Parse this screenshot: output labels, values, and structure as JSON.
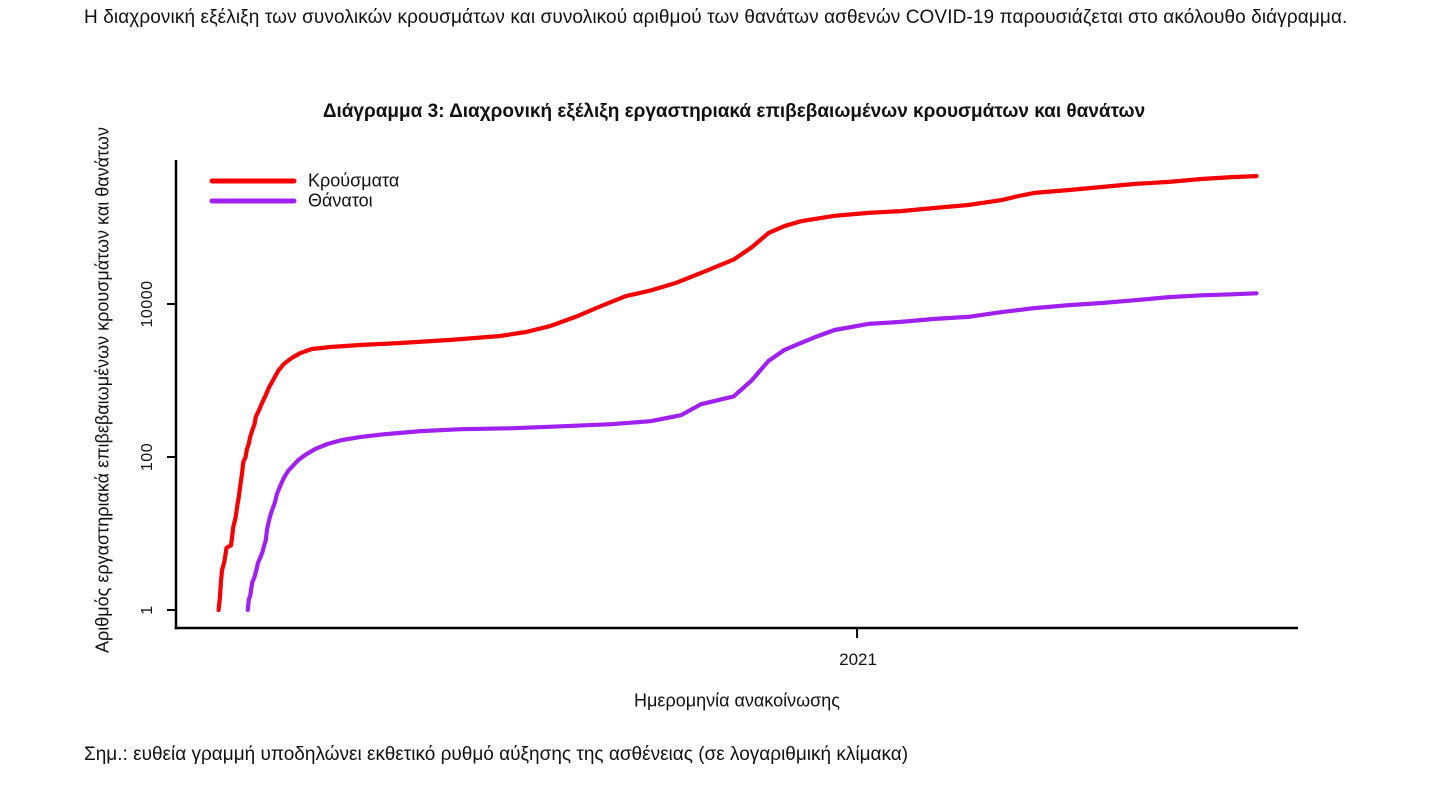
{
  "intro": {
    "text": "Η διαχρονική εξέλιξη των συνολικών κρουσμάτων και συνολικού αριθμού των θανάτων ασθενών COVID-19 παρουσιάζεται στο ακόλουθο διάγραμμα."
  },
  "note": {
    "text": "Σημ.: ευθεία γραμμή υποδηλώνει εκθετικό ρυθμό αύξησης της ασθένειας (σε λογαριθμική κλίμακα)"
  },
  "colors": {
    "cases": "#f40000",
    "deaths": "#a020f0",
    "axis": "#000000",
    "text": "#111111"
  },
  "chart_data": {
    "type": "line",
    "title": "Διάγραμμα 3: Διαχρονική εξέλιξη εργαστηριακά επιβεβαιωμένων κρουσμάτων και θανάτων",
    "xlabel": "Ημερομηνία ανακοίνωσης",
    "ylabel": "Αριθμός εργαστηριακά επιβεβαιωμένων κρουσμάτων και θανάτων",
    "y_scale": "log10",
    "ylim": [
      1,
      800000
    ],
    "grid": false,
    "legend_position": "top-left inside plot",
    "x_unit": "fraction of the date axis (0 = left end, 1 = right end)",
    "y_ticks": [
      {
        "value": 1,
        "label": "1"
      },
      {
        "value": 100,
        "label": "100"
      },
      {
        "value": 10000,
        "label": "10000"
      }
    ],
    "x_ticks": [
      {
        "frac": 0.607,
        "label": "2021"
      }
    ],
    "series": [
      {
        "name": "Κρούσματα",
        "color": "#f40000",
        "points": [
          [
            0.038,
            1
          ],
          [
            0.039,
            1.4
          ],
          [
            0.04,
            2.3
          ],
          [
            0.041,
            3.3
          ],
          [
            0.043,
            4.2
          ],
          [
            0.044,
            5.2
          ],
          [
            0.045,
            6.5
          ],
          [
            0.049,
            7
          ],
          [
            0.05,
            9
          ],
          [
            0.051,
            12
          ],
          [
            0.053,
            16
          ],
          [
            0.054,
            20
          ],
          [
            0.055,
            25
          ],
          [
            0.056,
            30
          ],
          [
            0.057,
            40
          ],
          [
            0.058,
            50
          ],
          [
            0.059,
            64
          ],
          [
            0.06,
            86
          ],
          [
            0.062,
            100
          ],
          [
            0.063,
            123
          ],
          [
            0.065,
            152
          ],
          [
            0.066,
            182
          ],
          [
            0.068,
            224
          ],
          [
            0.07,
            268
          ],
          [
            0.071,
            332
          ],
          [
            0.074,
            410
          ],
          [
            0.077,
            520
          ],
          [
            0.08,
            646
          ],
          [
            0.083,
            818
          ],
          [
            0.087,
            1040
          ],
          [
            0.091,
            1330
          ],
          [
            0.096,
            1640
          ],
          [
            0.103,
            1970
          ],
          [
            0.111,
            2290
          ],
          [
            0.121,
            2580
          ],
          [
            0.138,
            2740
          ],
          [
            0.164,
            2910
          ],
          [
            0.2,
            3090
          ],
          [
            0.245,
            3390
          ],
          [
            0.289,
            3820
          ],
          [
            0.312,
            4310
          ],
          [
            0.334,
            5180
          ],
          [
            0.356,
            6790
          ],
          [
            0.379,
            9420
          ],
          [
            0.401,
            12700
          ],
          [
            0.423,
            15000
          ],
          [
            0.446,
            19000
          ],
          [
            0.468,
            25500
          ],
          [
            0.497,
            38000
          ],
          [
            0.513,
            55000
          ],
          [
            0.528,
            84500
          ],
          [
            0.542,
            104000
          ],
          [
            0.557,
            121000
          ],
          [
            0.587,
            142000
          ],
          [
            0.617,
            155000
          ],
          [
            0.646,
            164000
          ],
          [
            0.676,
            180000
          ],
          [
            0.706,
            197000
          ],
          [
            0.736,
            228000
          ],
          [
            0.751,
            258000
          ],
          [
            0.765,
            283000
          ],
          [
            0.796,
            309000
          ],
          [
            0.825,
            338000
          ],
          [
            0.855,
            372000
          ],
          [
            0.885,
            395000
          ],
          [
            0.914,
            430000
          ],
          [
            0.941,
            456000
          ],
          [
            0.963,
            470000
          ]
        ]
      },
      {
        "name": "Θάνατοι",
        "color": "#a020f0",
        "points": [
          [
            0.064,
            1
          ],
          [
            0.065,
            1.4
          ],
          [
            0.066,
            1.5
          ],
          [
            0.067,
            1.9
          ],
          [
            0.068,
            2.3
          ],
          [
            0.07,
            2.7
          ],
          [
            0.071,
            3.1
          ],
          [
            0.072,
            3.5
          ],
          [
            0.073,
            4.1
          ],
          [
            0.075,
            4.8
          ],
          [
            0.077,
            5.7
          ],
          [
            0.078,
            6.5
          ],
          [
            0.08,
            8.2
          ],
          [
            0.081,
            11
          ],
          [
            0.082,
            13
          ],
          [
            0.084,
            17
          ],
          [
            0.086,
            21
          ],
          [
            0.088,
            25
          ],
          [
            0.09,
            33
          ],
          [
            0.093,
            42
          ],
          [
            0.096,
            53
          ],
          [
            0.1,
            66
          ],
          [
            0.105,
            79
          ],
          [
            0.109,
            91
          ],
          [
            0.115,
            106
          ],
          [
            0.124,
            127
          ],
          [
            0.135,
            148
          ],
          [
            0.148,
            167
          ],
          [
            0.164,
            182
          ],
          [
            0.187,
            199
          ],
          [
            0.218,
            218
          ],
          [
            0.254,
            231
          ],
          [
            0.298,
            237
          ],
          [
            0.343,
            252
          ],
          [
            0.388,
            268
          ],
          [
            0.423,
            294
          ],
          [
            0.45,
            352
          ],
          [
            0.468,
            490
          ],
          [
            0.497,
            620
          ],
          [
            0.513,
            1000
          ],
          [
            0.528,
            1800
          ],
          [
            0.542,
            2500
          ],
          [
            0.557,
            3100
          ],
          [
            0.572,
            3800
          ],
          [
            0.587,
            4570
          ],
          [
            0.602,
            5010
          ],
          [
            0.617,
            5500
          ],
          [
            0.646,
            5840
          ],
          [
            0.676,
            6380
          ],
          [
            0.706,
            6780
          ],
          [
            0.736,
            7840
          ],
          [
            0.765,
            8830
          ],
          [
            0.796,
            9680
          ],
          [
            0.825,
            10300
          ],
          [
            0.855,
            11200
          ],
          [
            0.885,
            12300
          ],
          [
            0.914,
            13000
          ],
          [
            0.941,
            13400
          ],
          [
            0.963,
            13800
          ]
        ]
      }
    ]
  }
}
